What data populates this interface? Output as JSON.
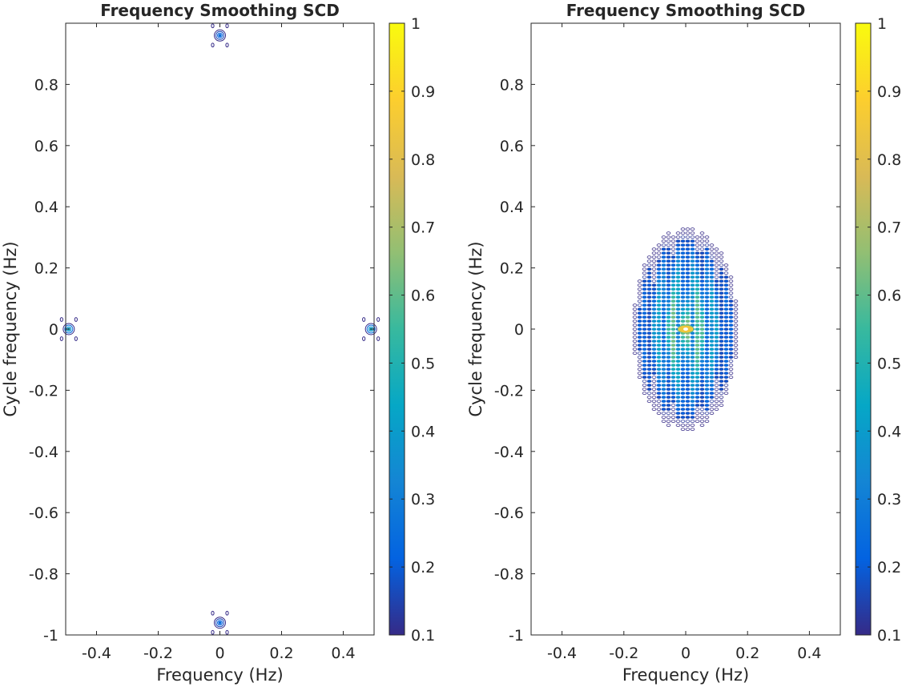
{
  "chart_data": [
    {
      "type": "heatmap",
      "subtype": "contour",
      "title": "Frequency Smoothing SCD",
      "xlabel": "Frequency (Hz)",
      "ylabel": "Cycle frequency (Hz)",
      "xlim": [
        -0.5,
        0.5
      ],
      "ylim": [
        -1,
        1
      ],
      "xticks": [
        "-0.4",
        "-0.2",
        "0",
        "0.2",
        "0.4"
      ],
      "yticks": [
        "-1",
        "-0.8",
        "-0.6",
        "-0.4",
        "-0.2",
        "0",
        "0.2",
        "0.4",
        "0.6",
        "0.8"
      ],
      "colorbar": {
        "range": [
          0.1,
          1
        ],
        "ticks": [
          "0.1",
          "0.2",
          "0.3",
          "0.4",
          "0.5",
          "0.6",
          "0.7",
          "0.8",
          "0.9",
          "1"
        ]
      },
      "features": [
        {
          "x": 0,
          "y": 0.96,
          "peak": 0.25
        },
        {
          "x": 0,
          "y": -0.96,
          "peak": 0.25
        },
        {
          "x": -0.49,
          "y": 0,
          "peak": 0.45
        },
        {
          "x": 0.49,
          "y": 0,
          "peak": 0.45
        }
      ]
    },
    {
      "type": "heatmap",
      "subtype": "contour",
      "title": "Frequency Smoothing SCD",
      "xlabel": "Frequency (Hz)",
      "ylabel": "Cycle frequency (Hz)",
      "xlim": [
        -0.5,
        0.5
      ],
      "ylim": [
        -1,
        1
      ],
      "xticks": [
        "-0.4",
        "-0.2",
        "0",
        "0.2",
        "0.4"
      ],
      "yticks": [
        "-1",
        "-0.8",
        "-0.6",
        "-0.4",
        "-0.2",
        "0",
        "0.2",
        "0.4",
        "0.6",
        "0.8"
      ],
      "colorbar": {
        "range": [
          0.1,
          1
        ],
        "ticks": [
          "0.1",
          "0.2",
          "0.3",
          "0.4",
          "0.5",
          "0.6",
          "0.7",
          "0.8",
          "0.9",
          "1"
        ]
      },
      "features": [
        {
          "shape": "diamond",
          "x_extent": [
            -0.18,
            0.18
          ],
          "y_extent": [
            -0.34,
            0.34
          ],
          "center": [
            0,
            0
          ],
          "peak": 0.85
        }
      ]
    }
  ],
  "parula": [
    "#352a87",
    "#0363e1",
    "#1485d4",
    "#06a7c6",
    "#38b99e",
    "#92bf73",
    "#d9ba56",
    "#fcce2e",
    "#f9fb0e"
  ]
}
